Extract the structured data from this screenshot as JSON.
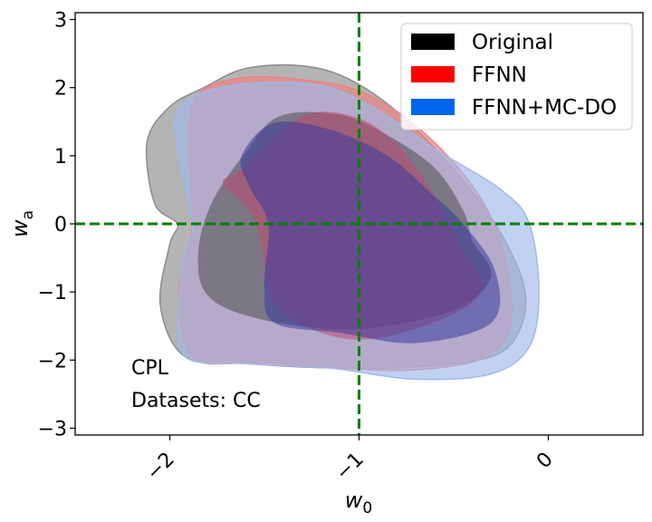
{
  "chart_data": {
    "type": "contour",
    "xlabel": "w",
    "xlabel_sub": "0",
    "ylabel": "w",
    "ylabel_sub": "a",
    "xlim": [
      -2.5,
      0.5
    ],
    "ylim": [
      -3.1,
      3.1
    ],
    "x_ticks": [
      -2,
      -1,
      0
    ],
    "x_tick_labels": [
      "−2",
      "−1",
      "0"
    ],
    "y_ticks": [
      3,
      2,
      1,
      0,
      -1,
      -2,
      -3
    ],
    "y_tick_labels": [
      "3",
      "2",
      "1",
      "0",
      "−1",
      "−2",
      "−3"
    ],
    "reference_lines": {
      "x": -1,
      "y": 0,
      "color": "#008000",
      "style": "dashed"
    },
    "legend": {
      "position": "top-right",
      "entries": [
        {
          "label": "Original",
          "color": "#000000"
        },
        {
          "label": "FFNN",
          "color": "#ff0000"
        },
        {
          "label": "FFNN+MC-DO",
          "color": "#0066ee"
        }
      ]
    },
    "annotations": [
      "CPL",
      "Datasets: CC"
    ],
    "series": [
      {
        "name": "Original",
        "outer_color": "#8c8c8c",
        "inner_color": "#4d4d4d",
        "outer": [
          [
            -1.82,
            2.0
          ],
          [
            -1.6,
            2.28
          ],
          [
            -1.3,
            2.32
          ],
          [
            -1.05,
            2.12
          ],
          [
            -0.78,
            1.6
          ],
          [
            -0.5,
            0.8
          ],
          [
            -0.28,
            0.0
          ],
          [
            -0.13,
            -0.9
          ],
          [
            -0.15,
            -1.55
          ],
          [
            -0.3,
            -1.95
          ],
          [
            -0.7,
            -2.1
          ],
          [
            -1.1,
            -2.12
          ],
          [
            -1.6,
            -2.05
          ],
          [
            -1.92,
            -1.95
          ],
          [
            -2.05,
            -1.2
          ],
          [
            -2.0,
            -0.3
          ],
          [
            -1.96,
            0.0
          ],
          [
            -2.08,
            0.3
          ],
          [
            -2.12,
            1.2
          ],
          [
            -2.0,
            1.72
          ]
        ],
        "inner": [
          [
            -1.6,
            1.05
          ],
          [
            -1.42,
            1.58
          ],
          [
            -1.1,
            1.6
          ],
          [
            -0.85,
            1.3
          ],
          [
            -0.6,
            0.82
          ],
          [
            -0.45,
            0.2
          ],
          [
            -0.4,
            -0.25
          ],
          [
            -0.3,
            -0.75
          ],
          [
            -0.45,
            -1.2
          ],
          [
            -0.75,
            -1.45
          ],
          [
            -1.1,
            -1.55
          ],
          [
            -1.55,
            -1.38
          ],
          [
            -1.8,
            -1.05
          ],
          [
            -1.85,
            -0.45
          ],
          [
            -1.78,
            0.3
          ]
        ]
      },
      {
        "name": "FFNN",
        "outer_color": "#f08080",
        "inner_color": "#c04a70",
        "outer": [
          [
            -1.85,
            1.9
          ],
          [
            -1.6,
            2.15
          ],
          [
            -1.25,
            2.1
          ],
          [
            -1.0,
            1.95
          ],
          [
            -0.75,
            1.55
          ],
          [
            -0.5,
            0.9
          ],
          [
            -0.32,
            0.2
          ],
          [
            -0.22,
            -0.6
          ],
          [
            -0.2,
            -1.5
          ],
          [
            -0.35,
            -1.98
          ],
          [
            -0.75,
            -2.15
          ],
          [
            -1.2,
            -2.1
          ],
          [
            -1.6,
            -2.05
          ],
          [
            -1.88,
            -1.95
          ],
          [
            -1.95,
            -1.0
          ],
          [
            -1.88,
            0.0
          ],
          [
            -1.9,
            1.2
          ]
        ],
        "inner": [
          [
            -1.62,
            0.8
          ],
          [
            -1.3,
            1.58
          ],
          [
            -1.0,
            1.55
          ],
          [
            -0.78,
            1.1
          ],
          [
            -0.6,
            0.4
          ],
          [
            -0.48,
            -0.25
          ],
          [
            -0.35,
            -0.9
          ],
          [
            -0.5,
            -1.32
          ],
          [
            -0.9,
            -1.68
          ],
          [
            -1.2,
            -1.6
          ],
          [
            -1.45,
            -1.15
          ],
          [
            -1.52,
            -0.25
          ],
          [
            -1.58,
            0.2
          ],
          [
            -1.72,
            0.6
          ]
        ]
      },
      {
        "name": "FFNN+MC-DO",
        "outer_color": "#9fb9ea",
        "inner_color": "#3a3aa0",
        "outer": [
          [
            -1.95,
            1.7
          ],
          [
            -1.7,
            2.02
          ],
          [
            -1.25,
            2.05
          ],
          [
            -0.95,
            1.75
          ],
          [
            -0.6,
            1.1
          ],
          [
            -0.25,
            0.5
          ],
          [
            -0.1,
            0.0
          ],
          [
            -0.05,
            -1.0
          ],
          [
            -0.1,
            -1.8
          ],
          [
            -0.3,
            -2.2
          ],
          [
            -0.7,
            -2.28
          ],
          [
            -1.15,
            -2.12
          ],
          [
            -1.6,
            -2.05
          ],
          [
            -1.92,
            -1.95
          ],
          [
            -1.95,
            -1.2
          ],
          [
            -1.92,
            -0.4
          ],
          [
            -1.88,
            0.0
          ],
          [
            -1.96,
            1.1
          ]
        ],
        "inner": [
          [
            -1.62,
            1.0
          ],
          [
            -1.45,
            1.48
          ],
          [
            -1.15,
            1.38
          ],
          [
            -0.85,
            1.0
          ],
          [
            -0.62,
            0.45
          ],
          [
            -0.45,
            0.0
          ],
          [
            -0.28,
            -0.7
          ],
          [
            -0.3,
            -1.45
          ],
          [
            -0.7,
            -1.75
          ],
          [
            -1.1,
            -1.6
          ],
          [
            -1.45,
            -1.45
          ],
          [
            -1.5,
            -0.9
          ],
          [
            -1.48,
            0.0
          ],
          [
            -1.58,
            0.55
          ]
        ]
      }
    ]
  }
}
